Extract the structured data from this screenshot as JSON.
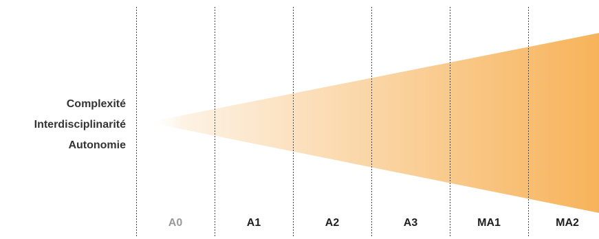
{
  "labels": [
    "Complexité",
    "Interdisciplinarité",
    "Autonomie"
  ],
  "phases": [
    {
      "label": "A0",
      "color": "#999999"
    },
    {
      "label": "A1",
      "color": "#1e1e1e"
    },
    {
      "label": "A2",
      "color": "#1e1e1e"
    },
    {
      "label": "A3",
      "color": "#1e1e1e"
    },
    {
      "label": "MA1",
      "color": "#1e1e1e"
    },
    {
      "label": "MA2",
      "color": "#1e1e1e"
    }
  ],
  "colors": {
    "wedge_start": "#fdf2e4",
    "wedge_end": "#f7b35a",
    "divider": "#444444"
  }
}
